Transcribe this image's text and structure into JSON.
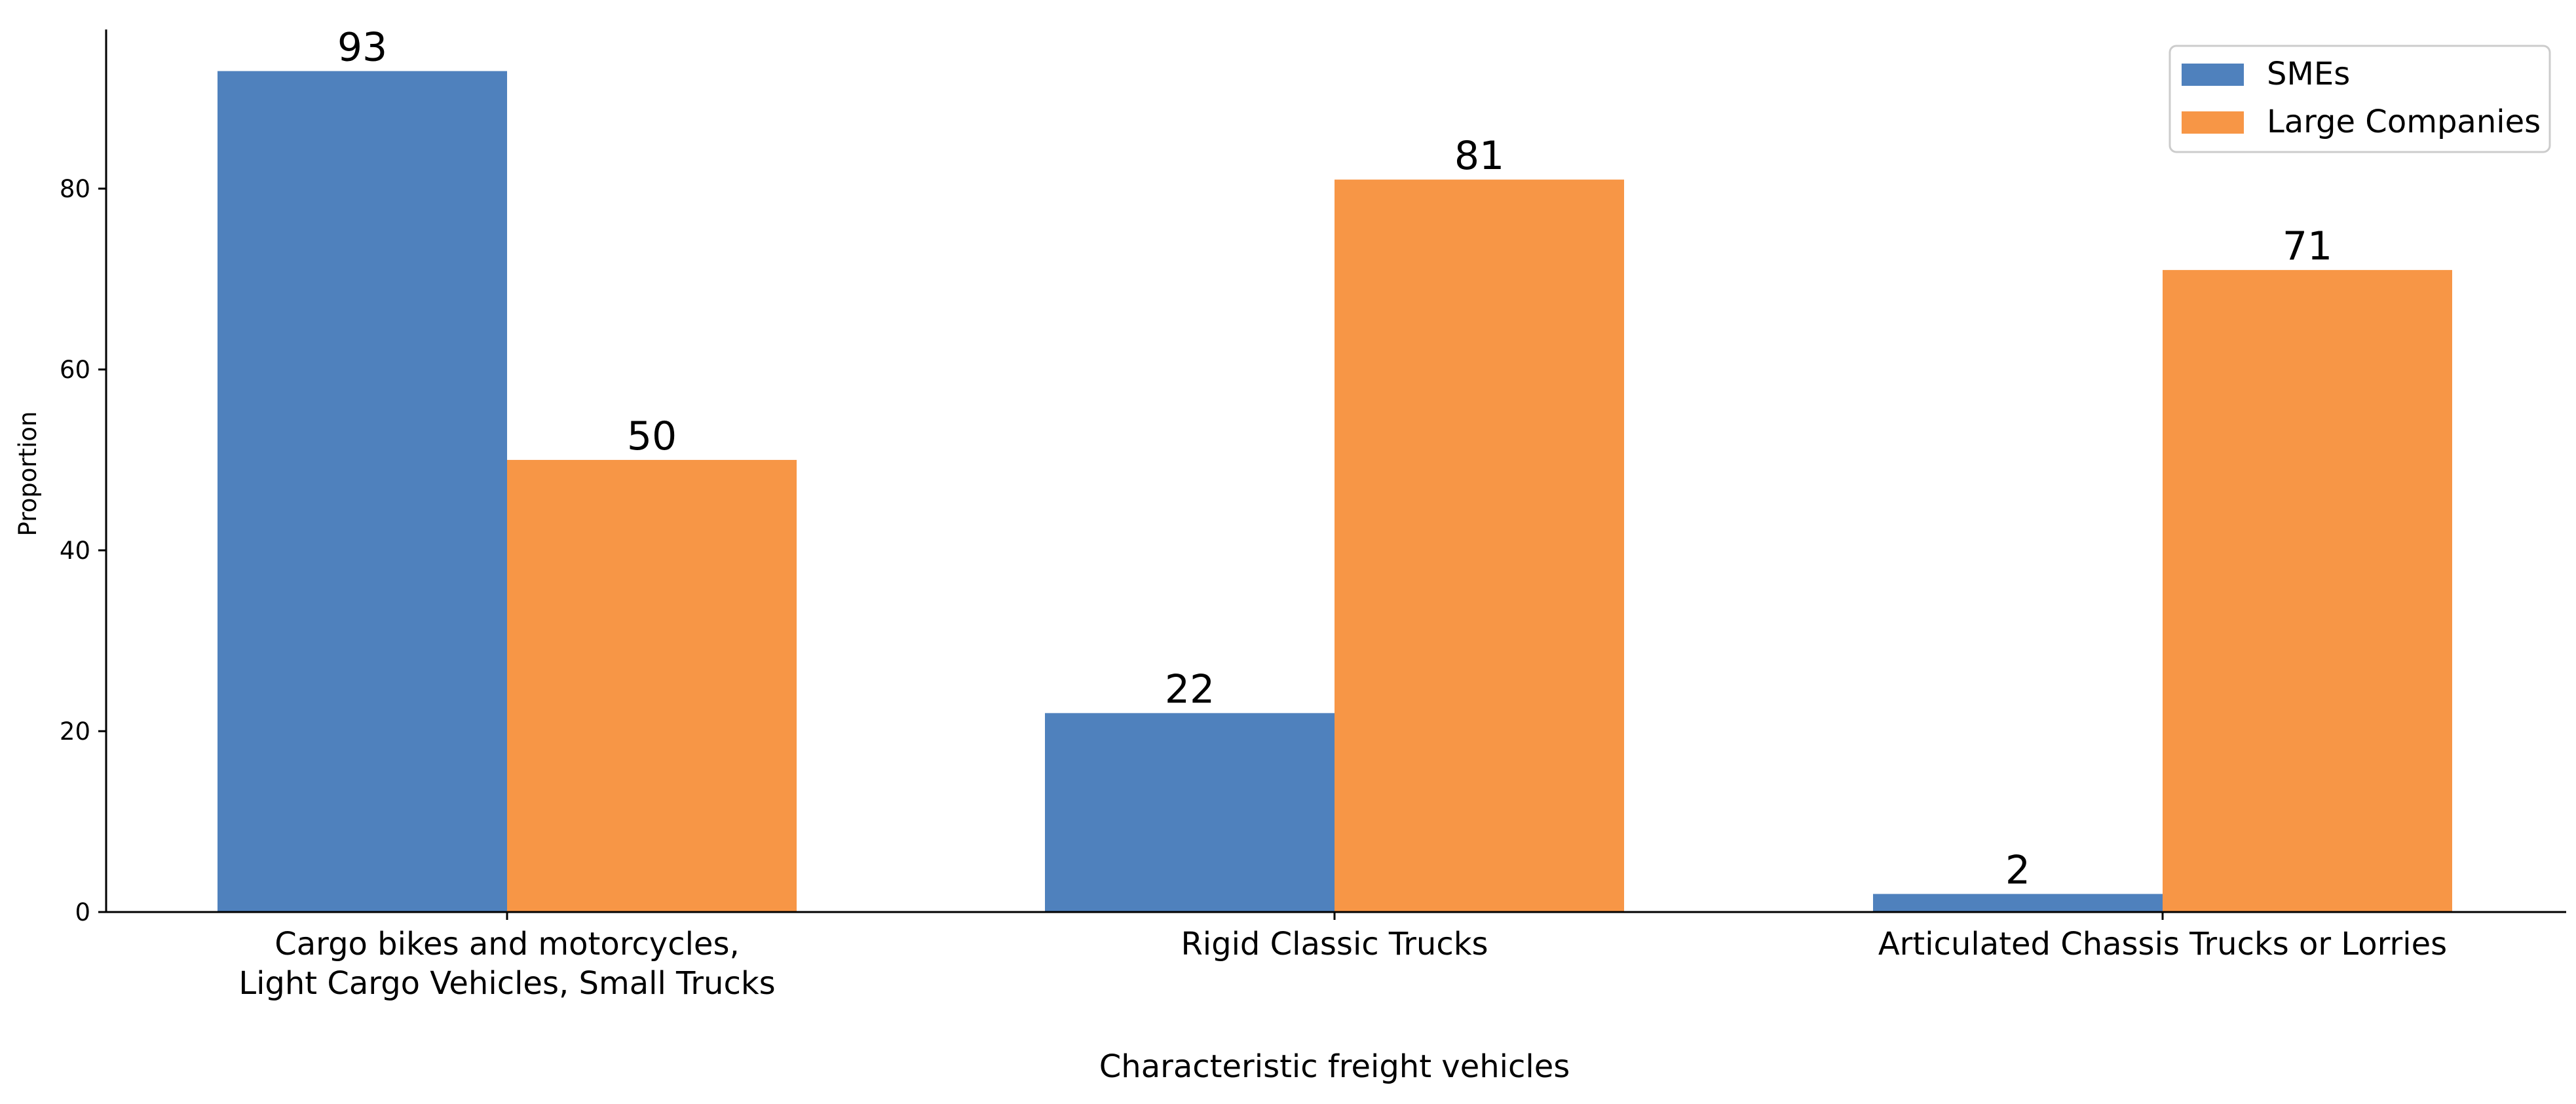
{
  "chart_data": {
    "type": "bar",
    "title": "",
    "xlabel": "Characteristic freight vehicles",
    "ylabel": "Proportion",
    "categories": [
      [
        "Cargo bikes and motorcycles,",
        "Light Cargo Vehicles, Small Trucks"
      ],
      [
        "Rigid Classic Trucks"
      ],
      [
        "Articulated Chassis Trucks or Lorries"
      ]
    ],
    "series": [
      {
        "name": "SMEs",
        "values": [
          93,
          22,
          2
        ],
        "color": "#4f81bd"
      },
      {
        "name": "Large Companies",
        "values": [
          50,
          81,
          71
        ],
        "color": "#f79646"
      }
    ],
    "y_ticks": [
      0,
      20,
      40,
      60,
      80
    ],
    "ylim": [
      0,
      97.6
    ],
    "grid": false,
    "legend_position": "top-right"
  }
}
